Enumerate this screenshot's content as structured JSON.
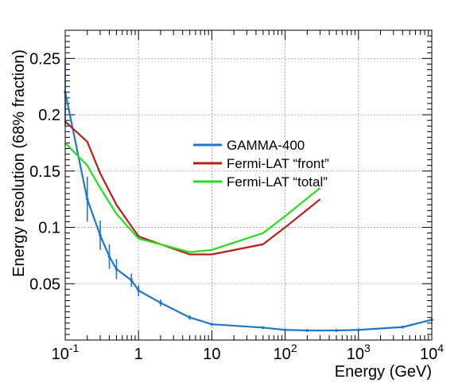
{
  "chart_data": {
    "type": "line",
    "title": "",
    "xlabel": "Energy (GeV)",
    "ylabel": "Energy resolution (68% fraction)",
    "x_scale": "log",
    "xlim": [
      0.1,
      10000
    ],
    "ylim": [
      0,
      0.275
    ],
    "grid": true,
    "legend_position": "center",
    "x_ticks": [
      {
        "base": "10",
        "exp": "-1"
      },
      {
        "base": "1",
        "exp": ""
      },
      {
        "base": "10",
        "exp": ""
      },
      {
        "base": "10",
        "exp": "2"
      },
      {
        "base": "10",
        "exp": "3"
      },
      {
        "base": "10",
        "exp": "4"
      }
    ],
    "y_ticks": [
      "0.05",
      "0.1",
      "0.15",
      "0.2",
      "0.25"
    ],
    "y_tick_values": [
      0.05,
      0.1,
      0.15,
      0.2,
      0.25
    ],
    "series": [
      {
        "name": "GAMMA-400",
        "color": "#1f77c9",
        "error_bars": true,
        "points": [
          {
            "x": 0.1,
            "y": 0.22,
            "err": 0.03
          },
          {
            "x": 0.2,
            "y": 0.125,
            "err": 0.02
          },
          {
            "x": 0.3,
            "y": 0.093,
            "err": 0.013
          },
          {
            "x": 0.4,
            "y": 0.074,
            "err": 0.011
          },
          {
            "x": 0.5,
            "y": 0.063,
            "err": 0.009
          },
          {
            "x": 0.8,
            "y": 0.053,
            "err": 0.006
          },
          {
            "x": 1,
            "y": 0.044,
            "err": 0.005
          },
          {
            "x": 2,
            "y": 0.033,
            "err": 0.003
          },
          {
            "x": 5,
            "y": 0.02,
            "err": 0.002
          },
          {
            "x": 10,
            "y": 0.014,
            "err": 0.001
          },
          {
            "x": 50,
            "y": 0.011,
            "err": 0.001
          },
          {
            "x": 100,
            "y": 0.009,
            "err": 0.0008
          },
          {
            "x": 200,
            "y": 0.0085,
            "err": 0.0008
          },
          {
            "x": 500,
            "y": 0.0085,
            "err": 0.0008
          },
          {
            "x": 1000,
            "y": 0.009,
            "err": 0.0008
          },
          {
            "x": 4000,
            "y": 0.0115,
            "err": 0.001
          },
          {
            "x": 10000,
            "y": 0.018,
            "err": 0.0012
          }
        ]
      },
      {
        "name": "Fermi-LAT “front”",
        "color": "#b5201b",
        "points": [
          {
            "x": 0.1,
            "y": 0.194
          },
          {
            "x": 0.2,
            "y": 0.176
          },
          {
            "x": 0.3,
            "y": 0.148
          },
          {
            "x": 0.5,
            "y": 0.12
          },
          {
            "x": 1,
            "y": 0.092
          },
          {
            "x": 2,
            "y": 0.085
          },
          {
            "x": 5,
            "y": 0.076
          },
          {
            "x": 10,
            "y": 0.076
          },
          {
            "x": 50,
            "y": 0.085
          },
          {
            "x": 100,
            "y": 0.1
          },
          {
            "x": 300,
            "y": 0.125
          }
        ]
      },
      {
        "name": "Fermi-LAT “total”",
        "color": "#22e01b",
        "points": [
          {
            "x": 0.1,
            "y": 0.175
          },
          {
            "x": 0.2,
            "y": 0.155
          },
          {
            "x": 0.3,
            "y": 0.135
          },
          {
            "x": 0.5,
            "y": 0.112
          },
          {
            "x": 1,
            "y": 0.09
          },
          {
            "x": 2,
            "y": 0.085
          },
          {
            "x": 5,
            "y": 0.078
          },
          {
            "x": 10,
            "y": 0.08
          },
          {
            "x": 50,
            "y": 0.095
          },
          {
            "x": 100,
            "y": 0.11
          },
          {
            "x": 300,
            "y": 0.135
          }
        ]
      }
    ]
  }
}
